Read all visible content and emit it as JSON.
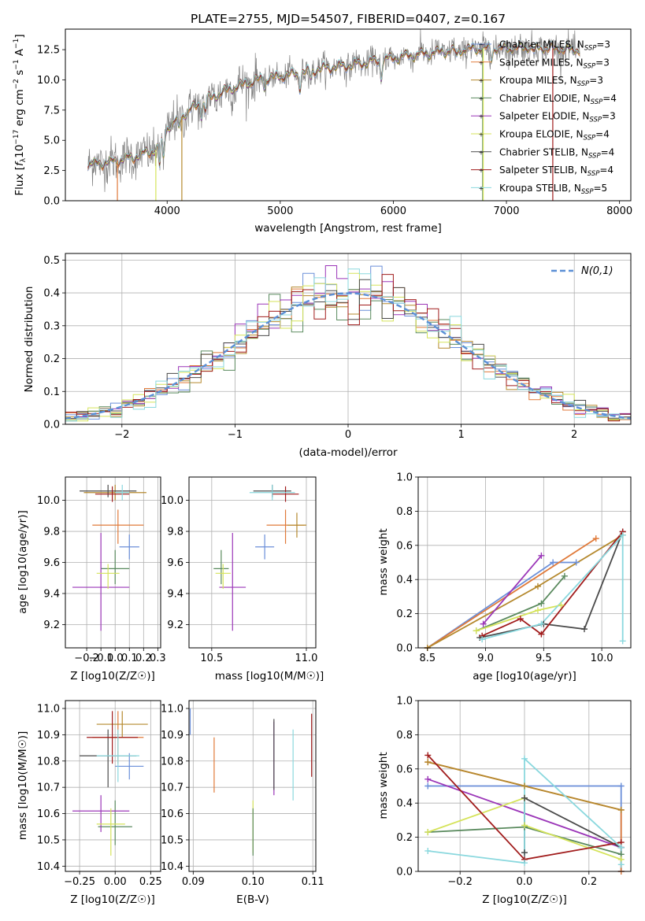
{
  "figure": {
    "title": "PLATE=2755, MJD=54507, FIBERID=0407, z=0.167"
  },
  "colors": {
    "data": "#808080",
    "grid": "#b0b0b0",
    "gauss": "#5b8fd6"
  },
  "models": [
    {
      "name": "Chabrier MILES, N_SSP=3",
      "prefix": "Chabrier MILES, N",
      "sub": "SSP",
      "suffix": "=3",
      "color": "#6b8fd9"
    },
    {
      "name": "Salpeter MILES, N_SSP=3",
      "prefix": "Salpeter MILES, N",
      "sub": "SSP",
      "suffix": "=3",
      "color": "#e07a3a"
    },
    {
      "name": "Kroupa MILES, N_SSP=3",
      "prefix": "Kroupa MILES, N",
      "sub": "SSP",
      "suffix": "=3",
      "color": "#b5892e"
    },
    {
      "name": "Chabrier ELODIE, N_SSP=4",
      "prefix": "Chabrier ELODIE, N",
      "sub": "SSP",
      "suffix": "=4",
      "color": "#5a8a5e"
    },
    {
      "name": "Salpeter ELODIE, N_SSP=3",
      "prefix": "Salpeter ELODIE, N",
      "sub": "SSP",
      "suffix": "=3",
      "color": "#9b36b8"
    },
    {
      "name": "Kroupa ELODIE, N_SSP=4",
      "prefix": "Kroupa ELODIE, N",
      "sub": "SSP",
      "suffix": "=4",
      "color": "#d5e35a"
    },
    {
      "name": "Chabrier STELIB, N_SSP=4",
      "prefix": "Chabrier STELIB, N",
      "sub": "SSP",
      "suffix": "=4",
      "color": "#4a4a4a"
    },
    {
      "name": "Salpeter STELIB, N_SSP=4",
      "prefix": "Salpeter STELIB, N",
      "sub": "SSP",
      "suffix": "=4",
      "color": "#a11c1c"
    },
    {
      "name": "Kroupa STELIB, N_SSP=5",
      "prefix": "Kroupa STELIB, N",
      "sub": "SSP",
      "suffix": "=5",
      "color": "#8ad8de"
    }
  ],
  "chart_data": [
    {
      "id": "spectrum",
      "type": "line",
      "xlabel": "wavelength [Angstrom, rest frame]",
      "ylabel_parts": [
        "Flux [",
        "f",
        "λ",
        "10",
        "−17",
        " erg cm",
        "−2",
        " s",
        "−1",
        " A",
        "−1",
        "]"
      ],
      "xlim": [
        3100,
        8100
      ],
      "ylim": [
        0,
        14.2
      ],
      "xticks": [
        4000,
        5000,
        6000,
        7000,
        8000
      ],
      "yticks": [
        0.0,
        2.5,
        5.0,
        7.5,
        10.0,
        12.5
      ],
      "continuum": [
        [
          3300,
          3.0
        ],
        [
          3500,
          3.2
        ],
        [
          3700,
          3.6
        ],
        [
          3900,
          4.2
        ],
        [
          4000,
          6.0
        ],
        [
          4200,
          7.5
        ],
        [
          4400,
          8.6
        ],
        [
          4600,
          9.4
        ],
        [
          4800,
          10.0
        ],
        [
          5000,
          10.3
        ],
        [
          5200,
          10.6
        ],
        [
          5400,
          11.0
        ],
        [
          5600,
          11.2
        ],
        [
          5800,
          11.5
        ],
        [
          6000,
          11.8
        ],
        [
          6200,
          12.1
        ],
        [
          6400,
          12.3
        ],
        [
          6600,
          12.5
        ],
        [
          6800,
          12.6
        ],
        [
          7000,
          12.6
        ],
        [
          7200,
          12.7
        ],
        [
          7400,
          12.6
        ],
        [
          7600,
          12.5
        ]
      ],
      "absorption": [
        [
          3934,
          2.0
        ],
        [
          3968,
          1.8
        ],
        [
          4102,
          0.8
        ],
        [
          4304,
          1.0
        ],
        [
          4340,
          0.8
        ],
        [
          4861,
          0.7
        ],
        [
          5175,
          1.2
        ],
        [
          5270,
          0.6
        ],
        [
          5892,
          1.5
        ],
        [
          6563,
          0.6
        ],
        [
          6867,
          0.8
        ],
        [
          7250,
          0.5
        ]
      ],
      "legend_position": "right"
    },
    {
      "id": "residual-hist",
      "type": "histogram",
      "xlabel": "(data-model)/error",
      "ylabel": "Normed distribution",
      "xlim": [
        -2.5,
        2.5
      ],
      "ylim": [
        0,
        0.52
      ],
      "xticks": [
        -2,
        -1,
        0,
        1,
        2
      ],
      "yticks": [
        0.0,
        0.1,
        0.2,
        0.3,
        0.4,
        0.5
      ],
      "bin_width": 0.1,
      "gauss_label": "N(0,1)",
      "legend_position": "top-right"
    },
    {
      "id": "age-vs-Z",
      "type": "scatter",
      "xlabel": "Z [log10(Z/Z☉)]",
      "ylabel": "age  [log10(age/yr)]",
      "xlim": [
        -0.35,
        0.32
      ],
      "ylim": [
        9.05,
        10.15
      ],
      "xticks": [
        -0.2,
        -0.1,
        0.0,
        0.1,
        0.2,
        0.3
      ],
      "yticks": [
        9.2,
        9.4,
        9.6,
        9.8,
        10.0
      ],
      "points": [
        {
          "x": 0.1,
          "y": 9.7,
          "xerr": [
            0.07,
            0.07
          ],
          "yerr": [
            0.08,
            0.08
          ]
        },
        {
          "x": 0.02,
          "y": 9.84,
          "xerr": [
            0.18,
            0.18
          ],
          "yerr": [
            0.12,
            0.1
          ]
        },
        {
          "x": 0.0,
          "y": 10.05,
          "xerr": [
            0.22,
            0.22
          ],
          "yerr": [
            0.05,
            0.05
          ]
        },
        {
          "x": 0.0,
          "y": 9.56,
          "xerr": [
            0.1,
            0.1
          ],
          "yerr": [
            0.1,
            0.12
          ]
        },
        {
          "x": -0.1,
          "y": 9.44,
          "xerr": [
            0.2,
            0.2
          ],
          "yerr": [
            0.28,
            0.35
          ]
        },
        {
          "x": -0.05,
          "y": 9.53,
          "xerr": [
            0.08,
            0.08
          ],
          "yerr": [
            0.1,
            0.06
          ]
        },
        {
          "x": -0.05,
          "y": 10.06,
          "xerr": [
            0.2,
            0.2
          ],
          "yerr": [
            0.04,
            0.04
          ]
        },
        {
          "x": -0.02,
          "y": 10.04,
          "xerr": [
            0.12,
            0.12
          ],
          "yerr": [
            0.05,
            0.05
          ]
        },
        {
          "x": 0.05,
          "y": 10.05,
          "xerr": [
            0.05,
            0.05
          ],
          "yerr": [
            0.05,
            0.05
          ]
        }
      ]
    },
    {
      "id": "age-vs-mass",
      "type": "scatter",
      "xlabel": "mass [log10(M/M☉)]",
      "ylabel": "",
      "xlim": [
        10.38,
        11.05
      ],
      "ylim": [
        9.05,
        10.15
      ],
      "xticks": [
        10.5,
        11.0
      ],
      "yticks": [
        9.2,
        9.4,
        9.6,
        9.8,
        10.0
      ],
      "points": [
        {
          "x": 10.78,
          "y": 9.7,
          "xerr": [
            0.05,
            0.05
          ],
          "yerr": [
            0.08,
            0.08
          ]
        },
        {
          "x": 10.89,
          "y": 9.84,
          "xerr": [
            0.1,
            0.1
          ],
          "yerr": [
            0.12,
            0.1
          ]
        },
        {
          "x": 10.95,
          "y": 9.84,
          "xerr": [
            0.05,
            0.05
          ],
          "yerr": [
            0.08,
            0.08
          ]
        },
        {
          "x": 10.55,
          "y": 9.56,
          "xerr": [
            0.04,
            0.04
          ],
          "yerr": [
            0.1,
            0.12
          ]
        },
        {
          "x": 10.61,
          "y": 9.44,
          "xerr": [
            0.07,
            0.07
          ],
          "yerr": [
            0.28,
            0.35
          ]
        },
        {
          "x": 10.56,
          "y": 9.53,
          "xerr": [
            0.04,
            0.04
          ],
          "yerr": [
            0.1,
            0.06
          ]
        },
        {
          "x": 10.82,
          "y": 10.06,
          "xerr": [
            0.1,
            0.1
          ],
          "yerr": [
            0.04,
            0.04
          ]
        },
        {
          "x": 10.89,
          "y": 10.04,
          "xerr": [
            0.07,
            0.07
          ],
          "yerr": [
            0.05,
            0.05
          ]
        },
        {
          "x": 10.82,
          "y": 10.05,
          "xerr": [
            0.12,
            0.12
          ],
          "yerr": [
            0.05,
            0.05
          ]
        }
      ]
    },
    {
      "id": "massweight-vs-age",
      "type": "line",
      "xlabel": "age  [log10(age/yr)]",
      "ylabel": "mass weight",
      "xlim": [
        8.42,
        10.25
      ],
      "ylim": [
        0,
        1
      ],
      "xticks": [
        8.5,
        9.0,
        9.5,
        10.0
      ],
      "yticks": [
        0.0,
        0.2,
        0.4,
        0.6,
        0.8,
        1.0
      ],
      "series": [
        {
          "x": [
            8.5,
            9.58,
            9.78
          ],
          "y": [
            0.0,
            0.5,
            0.5
          ]
        },
        {
          "x": [
            8.5,
            9.95
          ],
          "y": [
            0.0,
            0.64
          ]
        },
        {
          "x": [
            8.5,
            9.45,
            10.18
          ],
          "y": [
            0.0,
            0.36,
            0.66
          ]
        },
        {
          "x": [
            8.92,
            9.48,
            9.68
          ],
          "y": [
            0.1,
            0.26,
            0.42
          ]
        },
        {
          "x": [
            8.98,
            9.48
          ],
          "y": [
            0.14,
            0.54
          ]
        },
        {
          "x": [
            8.92,
            9.45,
            9.65
          ],
          "y": [
            0.1,
            0.22,
            0.25
          ]
        },
        {
          "x": [
            8.95,
            9.5,
            9.85,
            10.18
          ],
          "y": [
            0.06,
            0.14,
            0.11,
            0.68
          ]
        },
        {
          "x": [
            8.97,
            9.3,
            9.48,
            10.18
          ],
          "y": [
            0.07,
            0.17,
            0.08,
            0.68
          ]
        },
        {
          "x": [
            8.97,
            9.48,
            10.18,
            10.18
          ],
          "y": [
            0.05,
            0.14,
            0.66,
            0.04
          ]
        }
      ]
    },
    {
      "id": "mass-vs-Z",
      "type": "scatter",
      "xlabel": "Z [log10(Z/Z☉)]",
      "ylabel": "mass [log10(M/M☉)]",
      "xlim": [
        -0.35,
        0.32
      ],
      "ylim": [
        10.38,
        11.03
      ],
      "xticks": [
        -0.25,
        0.0,
        0.25
      ],
      "yticks": [
        10.4,
        10.5,
        10.6,
        10.7,
        10.8,
        10.9,
        11.0
      ],
      "points": [
        {
          "x": 0.1,
          "y": 10.78,
          "xerr": [
            0.1,
            0.1
          ],
          "yerr": [
            0.05,
            0.05
          ]
        },
        {
          "x": 0.02,
          "y": 10.89,
          "xerr": [
            0.18,
            0.18
          ],
          "yerr": [
            0.1,
            0.1
          ]
        },
        {
          "x": 0.05,
          "y": 10.94,
          "xerr": [
            0.18,
            0.18
          ],
          "yerr": [
            0.05,
            0.05
          ]
        },
        {
          "x": 0.0,
          "y": 10.55,
          "xerr": [
            0.12,
            0.12
          ],
          "yerr": [
            0.07,
            0.1
          ]
        },
        {
          "x": -0.1,
          "y": 10.61,
          "xerr": [
            0.2,
            0.2
          ],
          "yerr": [
            0.08,
            0.06
          ]
        },
        {
          "x": -0.03,
          "y": 10.56,
          "xerr": [
            0.1,
            0.1
          ],
          "yerr": [
            0.12,
            0.06
          ]
        },
        {
          "x": -0.05,
          "y": 10.82,
          "xerr": [
            0.2,
            0.2
          ],
          "yerr": [
            0.12,
            0.1
          ]
        },
        {
          "x": -0.02,
          "y": 10.89,
          "xerr": [
            0.18,
            0.18
          ],
          "yerr": [
            0.1,
            0.1
          ]
        },
        {
          "x": 0.02,
          "y": 10.82,
          "xerr": [
            0.15,
            0.15
          ],
          "yerr": [
            0.1,
            0.1
          ]
        }
      ]
    },
    {
      "id": "mass-vs-ebv",
      "type": "errorbar",
      "xlabel": "E(B-V)",
      "ylabel": "",
      "xlim": [
        0.0893,
        0.1105
      ],
      "ylim": [
        10.38,
        11.03
      ],
      "xticks": [
        0.09,
        0.1,
        0.11
      ],
      "yticks": [
        10.4,
        10.5,
        10.6,
        10.7,
        10.8,
        10.9,
        11.0
      ],
      "points": [
        {
          "x": 0.0895,
          "y": 10.95,
          "yerr": [
            0.05,
            0.05
          ],
          "model": 0
        },
        {
          "x": 0.0935,
          "y": 10.79,
          "yerr": [
            0.11,
            0.1
          ],
          "model": 1
        },
        {
          "x": 0.1,
          "y": 10.55,
          "yerr": [
            0.1,
            0.1
          ],
          "model": 5
        },
        {
          "x": 0.1,
          "y": 10.56,
          "yerr": [
            0.12,
            0.06
          ],
          "model": 3
        },
        {
          "x": 0.1035,
          "y": 10.8,
          "yerr": [
            0.13,
            0.15
          ],
          "model": 4
        },
        {
          "x": 0.1035,
          "y": 10.82,
          "yerr": [
            0.13,
            0.14
          ],
          "model": 6
        },
        {
          "x": 0.1067,
          "y": 10.79,
          "yerr": [
            0.14,
            0.13
          ],
          "model": 8
        },
        {
          "x": 0.1098,
          "y": 10.86,
          "yerr": [
            0.12,
            0.12
          ],
          "model": 7
        }
      ]
    },
    {
      "id": "massweight-vs-Z",
      "type": "line",
      "xlabel": "Z [log10(Z/Z☉)]",
      "ylabel": "mass weight",
      "xlim": [
        -0.33,
        0.33
      ],
      "ylim": [
        0,
        1
      ],
      "xticks": [
        -0.2,
        0.0,
        0.2
      ],
      "yticks": [
        0.0,
        0.2,
        0.4,
        0.6,
        0.8,
        1.0
      ],
      "series": [
        {
          "x": [
            -0.3,
            0.3,
            0.3
          ],
          "y": [
            0.5,
            0.5,
            0.0
          ]
        },
        {
          "x": [
            -0.3,
            0.3,
            0.3
          ],
          "y": [
            0.64,
            0.36,
            0.0
          ]
        },
        {
          "x": [
            -0.3,
            0.0,
            0.3
          ],
          "y": [
            0.64,
            0.5,
            0.36
          ]
        },
        {
          "x": [
            -0.3,
            0.0,
            0.3
          ],
          "y": [
            0.23,
            0.26,
            0.1
          ]
        },
        {
          "x": [
            -0.3,
            0.3
          ],
          "y": [
            0.54,
            0.14
          ]
        },
        {
          "x": [
            -0.3,
            0.0,
            0.0,
            0.3
          ],
          "y": [
            0.23,
            0.43,
            0.27,
            0.07
          ]
        },
        {
          "x": [
            0.0,
            0.0,
            0.3
          ],
          "y": [
            0.11,
            0.43,
            0.14
          ]
        },
        {
          "x": [
            -0.3,
            0.0,
            0.3
          ],
          "y": [
            0.68,
            0.07,
            0.17
          ]
        },
        {
          "x": [
            -0.3,
            0.0,
            0.0,
            0.3,
            0.3
          ],
          "y": [
            0.12,
            0.05,
            0.66,
            0.14,
            0.04
          ]
        }
      ]
    }
  ]
}
